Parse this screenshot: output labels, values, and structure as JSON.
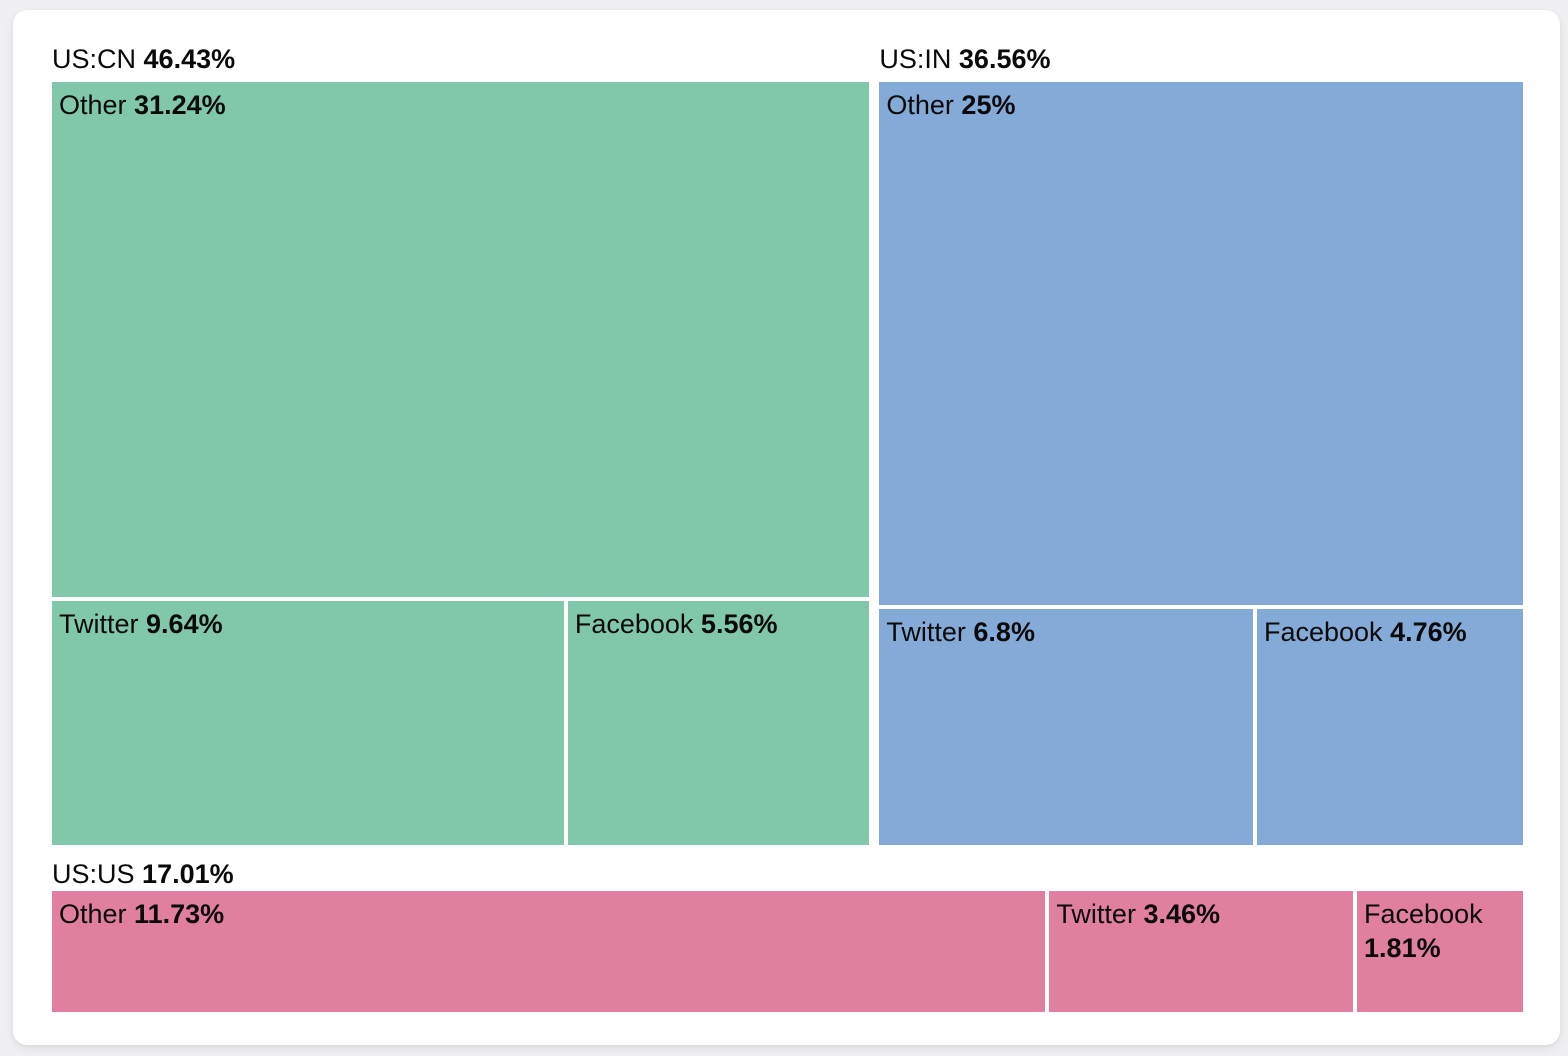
{
  "theme": {
    "page_background": "#f0f0f2",
    "card_background": "#ffffff",
    "text_color": "#0a0a0a"
  },
  "chart_data": {
    "type": "treemap",
    "unit": "%",
    "legend": "none",
    "layout_hint": "two groups on top row (US:CN left, US:IN right), one full-width group on bottom row; each group has its label+value header above its tiles; tile areas proportional to values; white 4px gaps between tiles",
    "groups": [
      {
        "label": "US:CN",
        "value": 46.43,
        "value_display": "46.43%",
        "color": "#81c8aa",
        "layout": "big-top",
        "children": [
          {
            "label": "Other",
            "value": 31.24,
            "value_display": "31.24%"
          },
          {
            "label": "Twitter",
            "value": 9.64,
            "value_display": "9.64%"
          },
          {
            "label": "Facebook",
            "value": 5.56,
            "value_display": "5.56%"
          }
        ]
      },
      {
        "label": "US:IN",
        "value": 36.56,
        "value_display": "36.56%",
        "color": "#84aad8",
        "layout": "big-top",
        "children": [
          {
            "label": "Other",
            "value": 25,
            "value_display": "25%"
          },
          {
            "label": "Twitter",
            "value": 6.8,
            "value_display": "6.8%"
          },
          {
            "label": "Facebook",
            "value": 4.76,
            "value_display": "4.76%"
          }
        ]
      },
      {
        "label": "US:US",
        "value": 17.01,
        "value_display": "17.01%",
        "color": "#e07f9e",
        "layout": "row",
        "children": [
          {
            "label": "Other",
            "value": 11.73,
            "value_display": "11.73%"
          },
          {
            "label": "Twitter",
            "value": 3.46,
            "value_display": "3.46%"
          },
          {
            "label": "Facebook",
            "value": 1.81,
            "value_display": "1.81%"
          }
        ]
      }
    ]
  }
}
